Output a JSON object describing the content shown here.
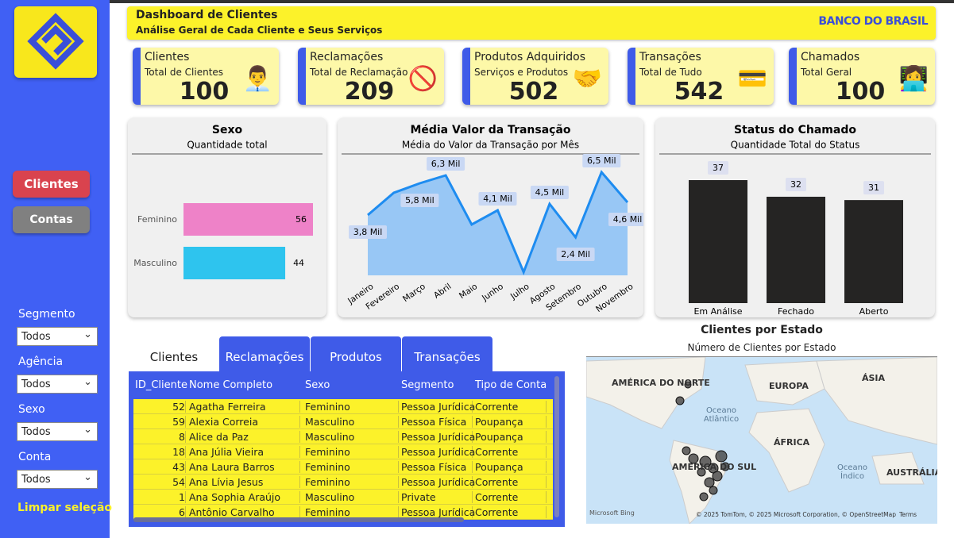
{
  "sidebar": {
    "menu": [
      "Clientes",
      "Contas"
    ],
    "filters": [
      {
        "label": "Segmento",
        "value": "Todos"
      },
      {
        "label": "Agência",
        "value": "Todos"
      },
      {
        "label": "Sexo",
        "value": "Todos"
      },
      {
        "label": "Conta",
        "value": "Todos"
      }
    ],
    "clear": "Limpar seleção"
  },
  "header": {
    "title": "Dashboard de Clientes",
    "subtitle": "Análise Geral de Cada Cliente e Seus Serviços",
    "logo": "BANCO DO BRASIL"
  },
  "kpis": [
    {
      "title": "Clientes",
      "label": "Total de Clientes",
      "value": 100
    },
    {
      "title": "Reclamações",
      "label": "Total de Reclamação",
      "value": 209
    },
    {
      "title": "Produtos Adquiridos",
      "label": "Serviços e Produtos",
      "value": 502
    },
    {
      "title": "Transações",
      "label": "Total de Tudo",
      "value": 542
    },
    {
      "title": "Chamados",
      "label": "Total Geral",
      "value": 100
    }
  ],
  "chart_data": [
    {
      "type": "bar",
      "orientation": "horizontal",
      "title": "Sexo",
      "subtitle": "Quantidade total",
      "categories": [
        "Feminino",
        "Masculino"
      ],
      "values": [
        56,
        44
      ],
      "colors": [
        "#ee82c8",
        "#2ec4ee"
      ]
    },
    {
      "type": "area",
      "title": "Média Valor da Transação",
      "subtitle": "Média do Valor da Transação por Mês",
      "categories": [
        "Janeiro",
        "Fevereiro",
        "Março",
        "Abril",
        "Maio",
        "Junho",
        "Julho",
        "Agosto",
        "Setembro",
        "Outubro",
        "Novembro"
      ],
      "values": [
        3.8,
        5.2,
        5.8,
        6.3,
        3.2,
        4.1,
        0.2,
        4.5,
        2.4,
        6.5,
        4.6
      ],
      "value_labels": [
        "3,8 Mil",
        null,
        "5,8 Mil",
        "6,3 Mil",
        null,
        "4,1 Mil",
        null,
        "4,5 Mil",
        "2,4 Mil",
        "6,5 Mil",
        "4,6 Mil"
      ],
      "color": "#1e8cf0"
    },
    {
      "type": "bar",
      "title": "Status do Chamado",
      "subtitle": "Quantidade Total do Status",
      "categories": [
        "Em Análise",
        "Fechado",
        "Aberto"
      ],
      "values": [
        37,
        32,
        31
      ],
      "color": "#252423"
    }
  ],
  "table": {
    "tabs": [
      "Clientes",
      "Reclamações",
      "Produtos",
      "Transações"
    ],
    "columns": [
      "ID_Cliente",
      "Nome Completo",
      "Sexo",
      "Segmento",
      "Tipo de Conta"
    ],
    "rows": [
      [
        52,
        "Agatha Ferreira",
        "Feminino",
        "Pessoa Jurídica",
        "Corrente"
      ],
      [
        59,
        "Alexia Correia",
        "Masculino",
        "Pessoa Física",
        "Poupança"
      ],
      [
        8,
        "Alice da Paz",
        "Masculino",
        "Pessoa Jurídica",
        "Poupança"
      ],
      [
        18,
        "Ana Júlia Vieira",
        "Feminino",
        "Pessoa Jurídica",
        "Corrente"
      ],
      [
        43,
        "Ana Laura Barros",
        "Feminino",
        "Pessoa Física",
        "Poupança"
      ],
      [
        54,
        "Ana Lívia Jesus",
        "Feminino",
        "Pessoa Jurídica",
        "Corrente"
      ],
      [
        1,
        "Ana Sophia Araújo",
        "Masculino",
        "Private",
        "Corrente"
      ],
      [
        6,
        "Antônio Carvalho",
        "Feminino",
        "Pessoa Jurídica",
        "Corrente"
      ]
    ]
  },
  "map": {
    "title": "Clientes por Estado",
    "subtitle": "Número de Clientes por Estado",
    "labels": [
      "AMÉRICA DO NORTE",
      "EUROPA",
      "ÁSIA",
      "Oceano Atlântico",
      "ÁFRICA",
      "AMÉRICA DO SUL",
      "Oceano Índico",
      "AUSTRÁLIA"
    ],
    "brand": "Microsoft Bing",
    "copyright": "© 2025 TomTom, © 2025 Microsoft Corporation, © OpenStreetMap",
    "terms": "Terms"
  }
}
